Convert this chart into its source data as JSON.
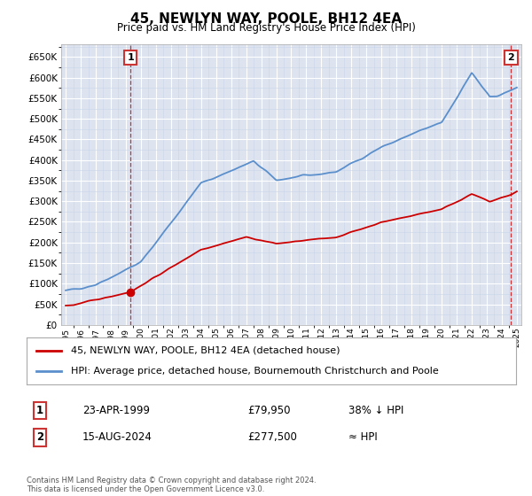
{
  "title": "45, NEWLYN WAY, POOLE, BH12 4EA",
  "subtitle": "Price paid vs. HM Land Registry's House Price Index (HPI)",
  "background_color": "#dde4f0",
  "ylim": [
    0,
    680000
  ],
  "yticks": [
    0,
    50000,
    100000,
    150000,
    200000,
    250000,
    300000,
    350000,
    400000,
    450000,
    500000,
    550000,
    600000,
    650000
  ],
  "xlim_start": 1994.7,
  "xlim_end": 2025.3,
  "sale1_x": 1999.31,
  "sale1_y": 79950,
  "sale2_x": 2024.62,
  "sale2_y": 277500,
  "sale1_label": "1",
  "sale2_label": "2",
  "sale1_date": "23-APR-1999",
  "sale1_price": "£79,950",
  "sale1_note": "38% ↓ HPI",
  "sale2_date": "15-AUG-2024",
  "sale2_price": "£277,500",
  "sale2_note": "≈ HPI",
  "legend_line1": "45, NEWLYN WAY, POOLE, BH12 4EA (detached house)",
  "legend_line2": "HPI: Average price, detached house, Bournemouth Christchurch and Poole",
  "footer": "Contains HM Land Registry data © Crown copyright and database right 2024.\nThis data is licensed under the Open Government Licence v3.0.",
  "red_color": "#cc0000",
  "blue_color": "#5b8fcc",
  "grid_color": "#ffffff",
  "minor_grid_color": "#c8d4e8"
}
